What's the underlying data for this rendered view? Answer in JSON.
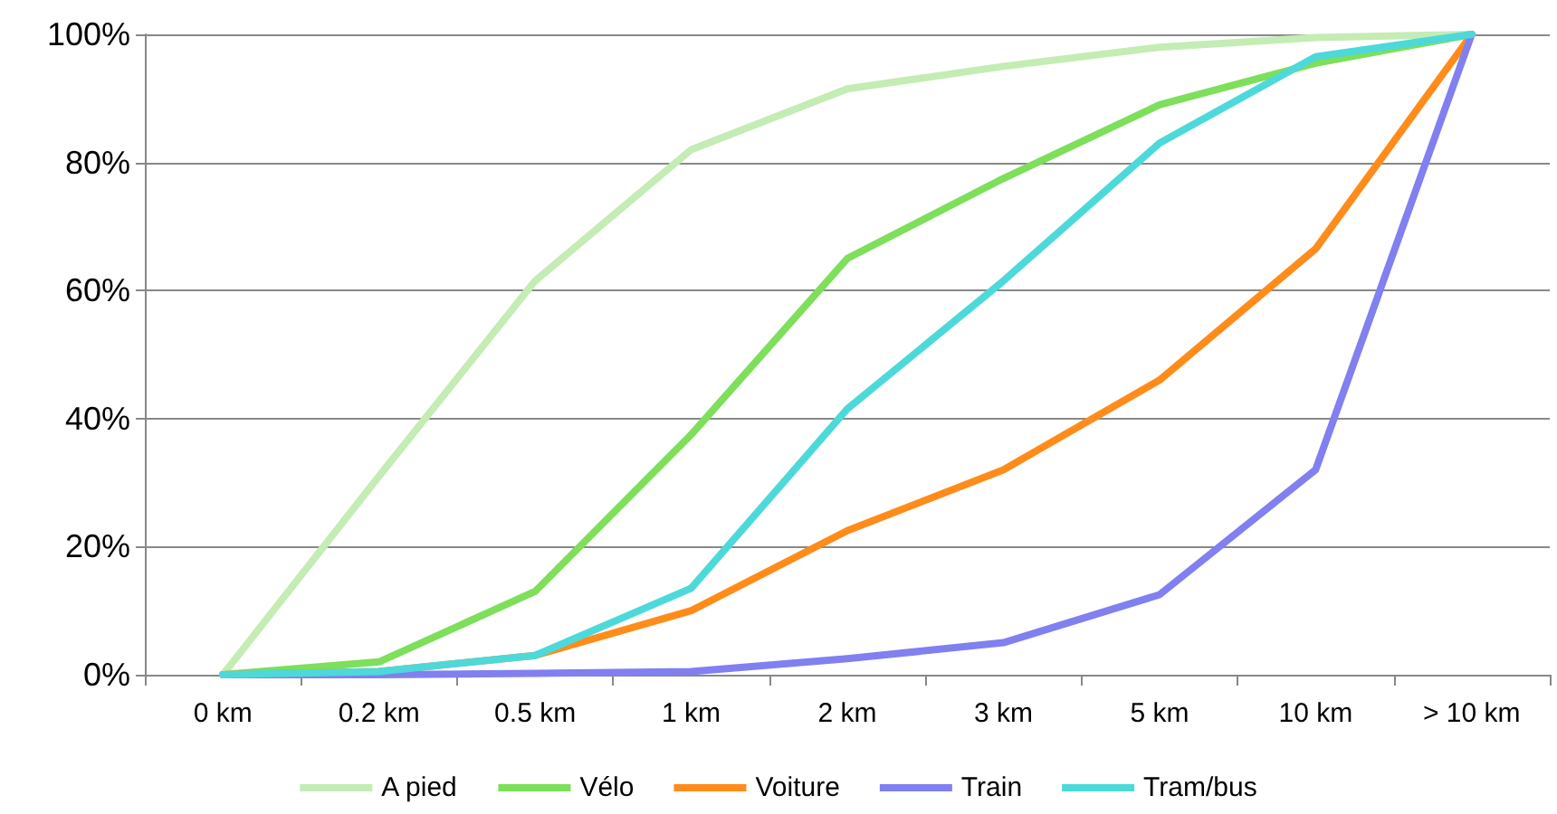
{
  "chart_data": {
    "type": "line",
    "categories": [
      "0 km",
      "0.2 km",
      "0.5 km",
      "1 km",
      "2 km",
      "3 km",
      "5 km",
      "10 km",
      "> 10 km"
    ],
    "series": [
      {
        "name": "A pied",
        "color": "#c4ecb4",
        "values": [
          0,
          31,
          61.5,
          82,
          91.5,
          95,
          98,
          99.5,
          100
        ]
      },
      {
        "name": "Vélo",
        "color": "#7ddf5a",
        "values": [
          0,
          2,
          13,
          37.5,
          65,
          77.5,
          89,
          95.5,
          100
        ]
      },
      {
        "name": "Voiture",
        "color": "#ff8c1a",
        "values": [
          0,
          0.5,
          3,
          10,
          22.5,
          32,
          46,
          66.5,
          100
        ]
      },
      {
        "name": "Train",
        "color": "#8080f0",
        "values": [
          0,
          0,
          0.2,
          0.5,
          2.5,
          5,
          12.5,
          32,
          100
        ]
      },
      {
        "name": "Tram/bus",
        "color": "#4dd9d9",
        "values": [
          0,
          0.5,
          3,
          13.5,
          41.5,
          61.5,
          83,
          96.5,
          100
        ]
      }
    ],
    "ylim": [
      0,
      100
    ],
    "yticks": [
      {
        "value": 0,
        "label": "0%"
      },
      {
        "value": 20,
        "label": "20%"
      },
      {
        "value": 40,
        "label": "40%"
      },
      {
        "value": 60,
        "label": "60%"
      },
      {
        "value": 80,
        "label": "80%"
      },
      {
        "value": 100,
        "label": "100%"
      }
    ],
    "grid": "y",
    "legend": "bottom",
    "marker": "none",
    "line_style": "solid"
  }
}
